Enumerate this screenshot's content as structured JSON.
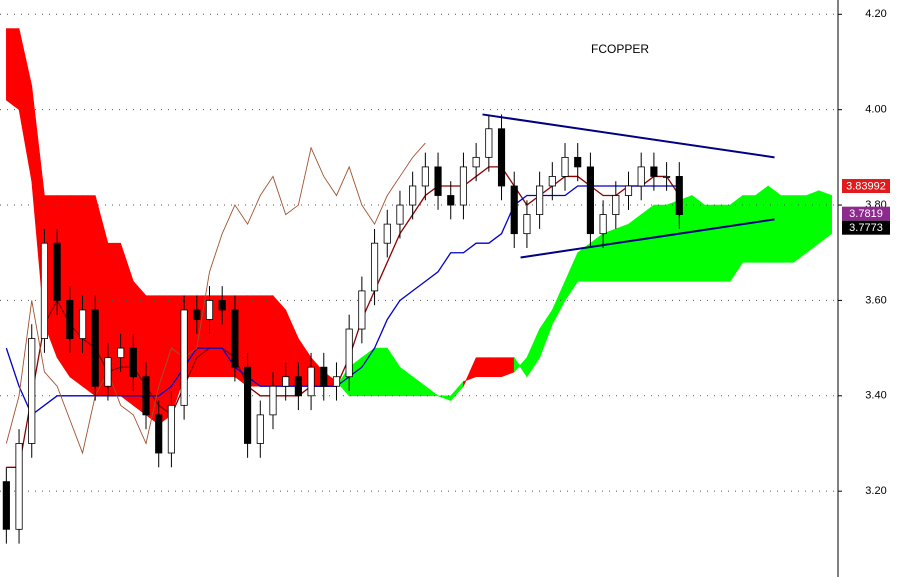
{
  "chart_data": {
    "type": "candlestick",
    "title": "FCOPPER",
    "xlim": [
      -0.5,
      65.5
    ],
    "ylim": [
      3.02,
      4.23
    ],
    "yticks": [
      {
        "value": 3.2,
        "label": "3.20"
      },
      {
        "value": 3.4,
        "label": "3.40"
      },
      {
        "value": 3.6,
        "label": "3.60"
      },
      {
        "value": 3.8,
        "label": "3.80"
      },
      {
        "value": 4.0,
        "label": "4.00"
      },
      {
        "value": 4.2,
        "label": "4.20"
      }
    ],
    "grid": true,
    "ohlc": {
      "open": [
        3.22,
        3.12,
        3.3,
        3.52,
        3.72,
        3.6,
        3.52,
        3.58,
        3.42,
        3.48,
        3.5,
        3.44,
        3.36,
        3.28,
        3.38,
        3.58,
        3.56,
        3.6,
        3.58,
        3.46,
        3.3,
        3.36,
        3.42,
        3.44,
        3.4,
        3.46,
        3.42,
        3.44,
        3.54,
        3.62,
        3.72,
        3.76,
        3.8,
        3.84,
        3.88,
        3.82,
        3.8,
        3.88,
        3.9,
        3.96,
        3.84,
        3.74,
        3.78,
        3.84,
        3.86,
        3.9,
        3.88,
        3.74,
        3.78,
        3.82,
        3.84,
        3.88,
        3.86,
        3.86
      ],
      "high": [
        3.25,
        3.33,
        3.55,
        3.75,
        3.75,
        3.63,
        3.61,
        3.61,
        3.51,
        3.53,
        3.53,
        3.47,
        3.39,
        3.41,
        3.61,
        3.61,
        3.63,
        3.63,
        3.61,
        3.49,
        3.39,
        3.45,
        3.47,
        3.47,
        3.49,
        3.49,
        3.47,
        3.57,
        3.65,
        3.75,
        3.79,
        3.83,
        3.87,
        3.91,
        3.91,
        3.85,
        3.91,
        3.93,
        3.99,
        3.99,
        3.87,
        3.81,
        3.87,
        3.89,
        3.93,
        3.93,
        3.91,
        3.81,
        3.85,
        3.87,
        3.91,
        3.91,
        3.89,
        3.89
      ],
      "low": [
        3.09,
        3.09,
        3.27,
        3.49,
        3.57,
        3.49,
        3.49,
        3.39,
        3.39,
        3.45,
        3.41,
        3.33,
        3.25,
        3.25,
        3.35,
        3.53,
        3.53,
        3.55,
        3.43,
        3.27,
        3.27,
        3.33,
        3.39,
        3.37,
        3.37,
        3.39,
        3.39,
        3.41,
        3.51,
        3.59,
        3.69,
        3.73,
        3.77,
        3.81,
        3.79,
        3.77,
        3.77,
        3.85,
        3.87,
        3.81,
        3.71,
        3.71,
        3.75,
        3.81,
        3.83,
        3.85,
        3.71,
        3.71,
        3.75,
        3.79,
        3.81,
        3.83,
        3.83,
        3.75
      ],
      "close": [
        3.12,
        3.3,
        3.52,
        3.72,
        3.6,
        3.52,
        3.58,
        3.42,
        3.48,
        3.5,
        3.44,
        3.36,
        3.28,
        3.38,
        3.58,
        3.56,
        3.6,
        3.58,
        3.46,
        3.3,
        3.36,
        3.42,
        3.44,
        3.4,
        3.46,
        3.42,
        3.44,
        3.54,
        3.62,
        3.72,
        3.76,
        3.8,
        3.84,
        3.88,
        3.82,
        3.8,
        3.88,
        3.9,
        3.96,
        3.84,
        3.74,
        3.78,
        3.84,
        3.86,
        3.9,
        3.88,
        3.74,
        3.78,
        3.82,
        3.84,
        3.88,
        3.86,
        3.86,
        3.78
      ]
    },
    "lines": [
      {
        "color": "#8b0000",
        "width": 1.3,
        "values": [
          3.25,
          3.25,
          3.4,
          3.55,
          3.6,
          3.55,
          3.52,
          3.5,
          3.45,
          3.46,
          3.46,
          3.42,
          3.38,
          3.36,
          3.42,
          3.48,
          3.5,
          3.5,
          3.48,
          3.42,
          3.4,
          3.4,
          3.4,
          3.4,
          3.42,
          3.42,
          3.42,
          3.48,
          3.56,
          3.62,
          3.68,
          3.74,
          3.78,
          3.82,
          3.84,
          3.84,
          3.84,
          3.86,
          3.88,
          3.88,
          3.84,
          3.8,
          3.82,
          3.84,
          3.86,
          3.86,
          3.84,
          3.82,
          3.82,
          3.84,
          3.84,
          3.86,
          3.86,
          3.82
        ]
      },
      {
        "color": "#0000cc",
        "width": 1.3,
        "values": [
          3.5,
          3.42,
          3.36,
          3.38,
          3.4,
          3.4,
          3.4,
          3.4,
          3.4,
          3.4,
          3.4,
          3.4,
          3.4,
          3.42,
          3.46,
          3.5,
          3.5,
          3.5,
          3.46,
          3.44,
          3.42,
          3.42,
          3.42,
          3.42,
          3.42,
          3.42,
          3.42,
          3.44,
          3.46,
          3.5,
          3.56,
          3.6,
          3.62,
          3.64,
          3.66,
          3.7,
          3.7,
          3.72,
          3.72,
          3.74,
          3.8,
          3.82,
          3.82,
          3.82,
          3.82,
          3.84,
          3.84,
          3.84,
          3.84,
          3.84,
          3.84,
          3.84,
          3.84,
          3.84
        ]
      },
      {
        "color": "#a0522d",
        "width": 0.9,
        "values": [
          3.3,
          3.4,
          3.6,
          3.45,
          3.42,
          3.35,
          3.28,
          3.4,
          3.45,
          3.38,
          3.36,
          3.3,
          3.42,
          3.5,
          3.48,
          3.5,
          3.66,
          3.74,
          3.8,
          3.76,
          3.82,
          3.86,
          3.78,
          3.8,
          3.92,
          3.86,
          3.82,
          3.88,
          3.8,
          3.76,
          3.82,
          3.86,
          3.9,
          3.93
        ]
      }
    ],
    "cloud": {
      "bull_color": "#00ff00",
      "bear_color": "#ff0000",
      "span_a": [
        4.02,
        4.0,
        3.85,
        3.55,
        3.48,
        3.44,
        3.42,
        3.4,
        3.4,
        3.4,
        3.38,
        3.36,
        3.34,
        3.36,
        3.44,
        3.44,
        3.44,
        3.44,
        3.44,
        3.42,
        3.42,
        3.42,
        3.42,
        3.42,
        3.42,
        3.42,
        3.42,
        3.46,
        3.48,
        3.5,
        3.5,
        3.46,
        3.44,
        3.42,
        3.4,
        3.4,
        3.43,
        3.44,
        3.44,
        3.44,
        3.45,
        3.48,
        3.54,
        3.58,
        3.64,
        3.7,
        3.72,
        3.74,
        3.75,
        3.76,
        3.78,
        3.8,
        3.8,
        3.81,
        3.82,
        3.8,
        3.8,
        3.8,
        3.82,
        3.82,
        3.84,
        3.82,
        3.82,
        3.82,
        3.83,
        3.82
      ],
      "span_b": [
        4.17,
        4.17,
        4.05,
        3.82,
        3.82,
        3.82,
        3.82,
        3.82,
        3.72,
        3.72,
        3.64,
        3.61,
        3.61,
        3.61,
        3.61,
        3.61,
        3.61,
        3.61,
        3.61,
        3.61,
        3.61,
        3.61,
        3.58,
        3.52,
        3.48,
        3.45,
        3.43,
        3.4,
        3.4,
        3.4,
        3.4,
        3.4,
        3.4,
        3.4,
        3.4,
        3.39,
        3.42,
        3.48,
        3.48,
        3.48,
        3.48,
        3.44,
        3.48,
        3.55,
        3.6,
        3.64,
        3.64,
        3.64,
        3.64,
        3.64,
        3.64,
        3.64,
        3.64,
        3.64,
        3.64,
        3.64,
        3.64,
        3.64,
        3.68,
        3.68,
        3.68,
        3.68,
        3.68,
        3.7,
        3.72,
        3.74
      ]
    },
    "trendlines": [
      {
        "color": "#000080",
        "x": [
          37.5,
          60.5
        ],
        "y": [
          3.99,
          3.9
        ]
      },
      {
        "color": "#000080",
        "x": [
          40.5,
          60.5
        ],
        "y": [
          3.69,
          3.77
        ]
      }
    ],
    "price_labels": [
      {
        "value": 3.83992,
        "color": "#e31a1c"
      },
      {
        "value": 3.7819,
        "color": "#8e2a8e"
      },
      {
        "value": 3.7773,
        "color": "#000000"
      }
    ]
  }
}
